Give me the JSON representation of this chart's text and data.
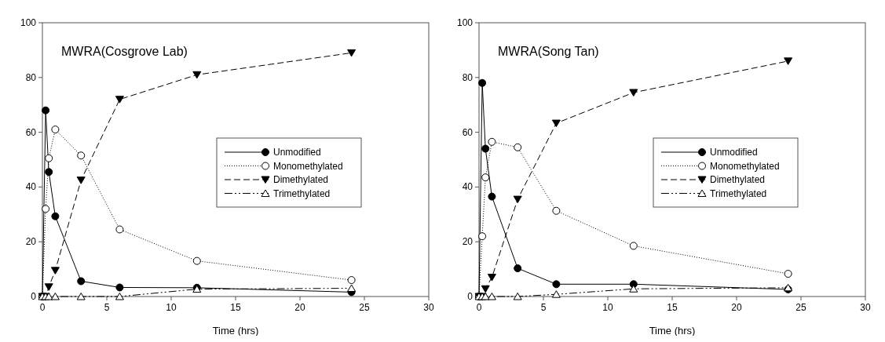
{
  "chart_data": [
    {
      "type": "line",
      "title": "MWRA(Cosgrove Lab)",
      "xlabel": "Time (hrs)",
      "x": [
        0,
        0.25,
        0.5,
        1,
        3,
        6,
        12,
        24
      ],
      "xlim": [
        0,
        30
      ],
      "xticks": [
        0,
        5,
        10,
        15,
        20,
        25,
        30
      ],
      "ylim": [
        0,
        100
      ],
      "yticks": [
        0,
        20,
        40,
        60,
        80,
        100
      ],
      "legend": "right",
      "grid": false,
      "series": [
        {
          "name": "Unmodified",
          "color": "#000000",
          "marker": "circle",
          "line_style": "solid",
          "values": [
            0,
            68,
            45.5,
            29.3,
            5.6,
            3.3,
            3.2,
            1.6
          ]
        },
        {
          "name": "Monomethylated",
          "color": "#000000",
          "marker": "circle",
          "line_style": "dotted",
          "values": [
            0,
            32,
            50.5,
            61,
            51.5,
            24.5,
            13,
            6
          ]
        },
        {
          "name": "Dimethylated",
          "color": "#000000",
          "marker": "triangle",
          "line_style": "dashed",
          "values": [
            0,
            0,
            3.5,
            9.5,
            42.5,
            72,
            81,
            89
          ]
        },
        {
          "name": "Trimethylated",
          "color": "#000000",
          "marker": "triangle",
          "line_style": "dashed",
          "values": [
            0,
            0,
            0,
            0,
            0,
            0,
            2.7,
            3
          ]
        }
      ]
    },
    {
      "type": "line",
      "title": "MWRA(Song Tan)",
      "xlabel": "Time (hrs)",
      "x": [
        0,
        0.25,
        0.5,
        1,
        3,
        6,
        12,
        24
      ],
      "xlim": [
        0,
        30
      ],
      "xticks": [
        0,
        5,
        10,
        15,
        20,
        25,
        30
      ],
      "ylim": [
        0,
        100
      ],
      "yticks": [
        0,
        20,
        40,
        60,
        80,
        100
      ],
      "legend": "right",
      "grid": false,
      "series": [
        {
          "name": "Unmodified",
          "color": "#000000",
          "marker": "circle",
          "line_style": "solid",
          "values": [
            0,
            78,
            54,
            36.5,
            10.3,
            4.5,
            4.5,
            2.6
          ]
        },
        {
          "name": "Monomethylated",
          "color": "#000000",
          "marker": "circle",
          "line_style": "dotted",
          "values": [
            0,
            22,
            43.5,
            56.5,
            54.5,
            31.3,
            18.5,
            8.3
          ]
        },
        {
          "name": "Dimethylated",
          "color": "#000000",
          "marker": "triangle",
          "line_style": "dashed",
          "values": [
            0,
            0,
            2.8,
            7,
            35.5,
            63.3,
            74.5,
            86
          ]
        },
        {
          "name": "Trimethylated",
          "color": "#000000",
          "marker": "triangle",
          "line_style": "dashed",
          "values": [
            0,
            0,
            0,
            0,
            0,
            0.8,
            2.8,
            3.2
          ]
        }
      ]
    }
  ]
}
